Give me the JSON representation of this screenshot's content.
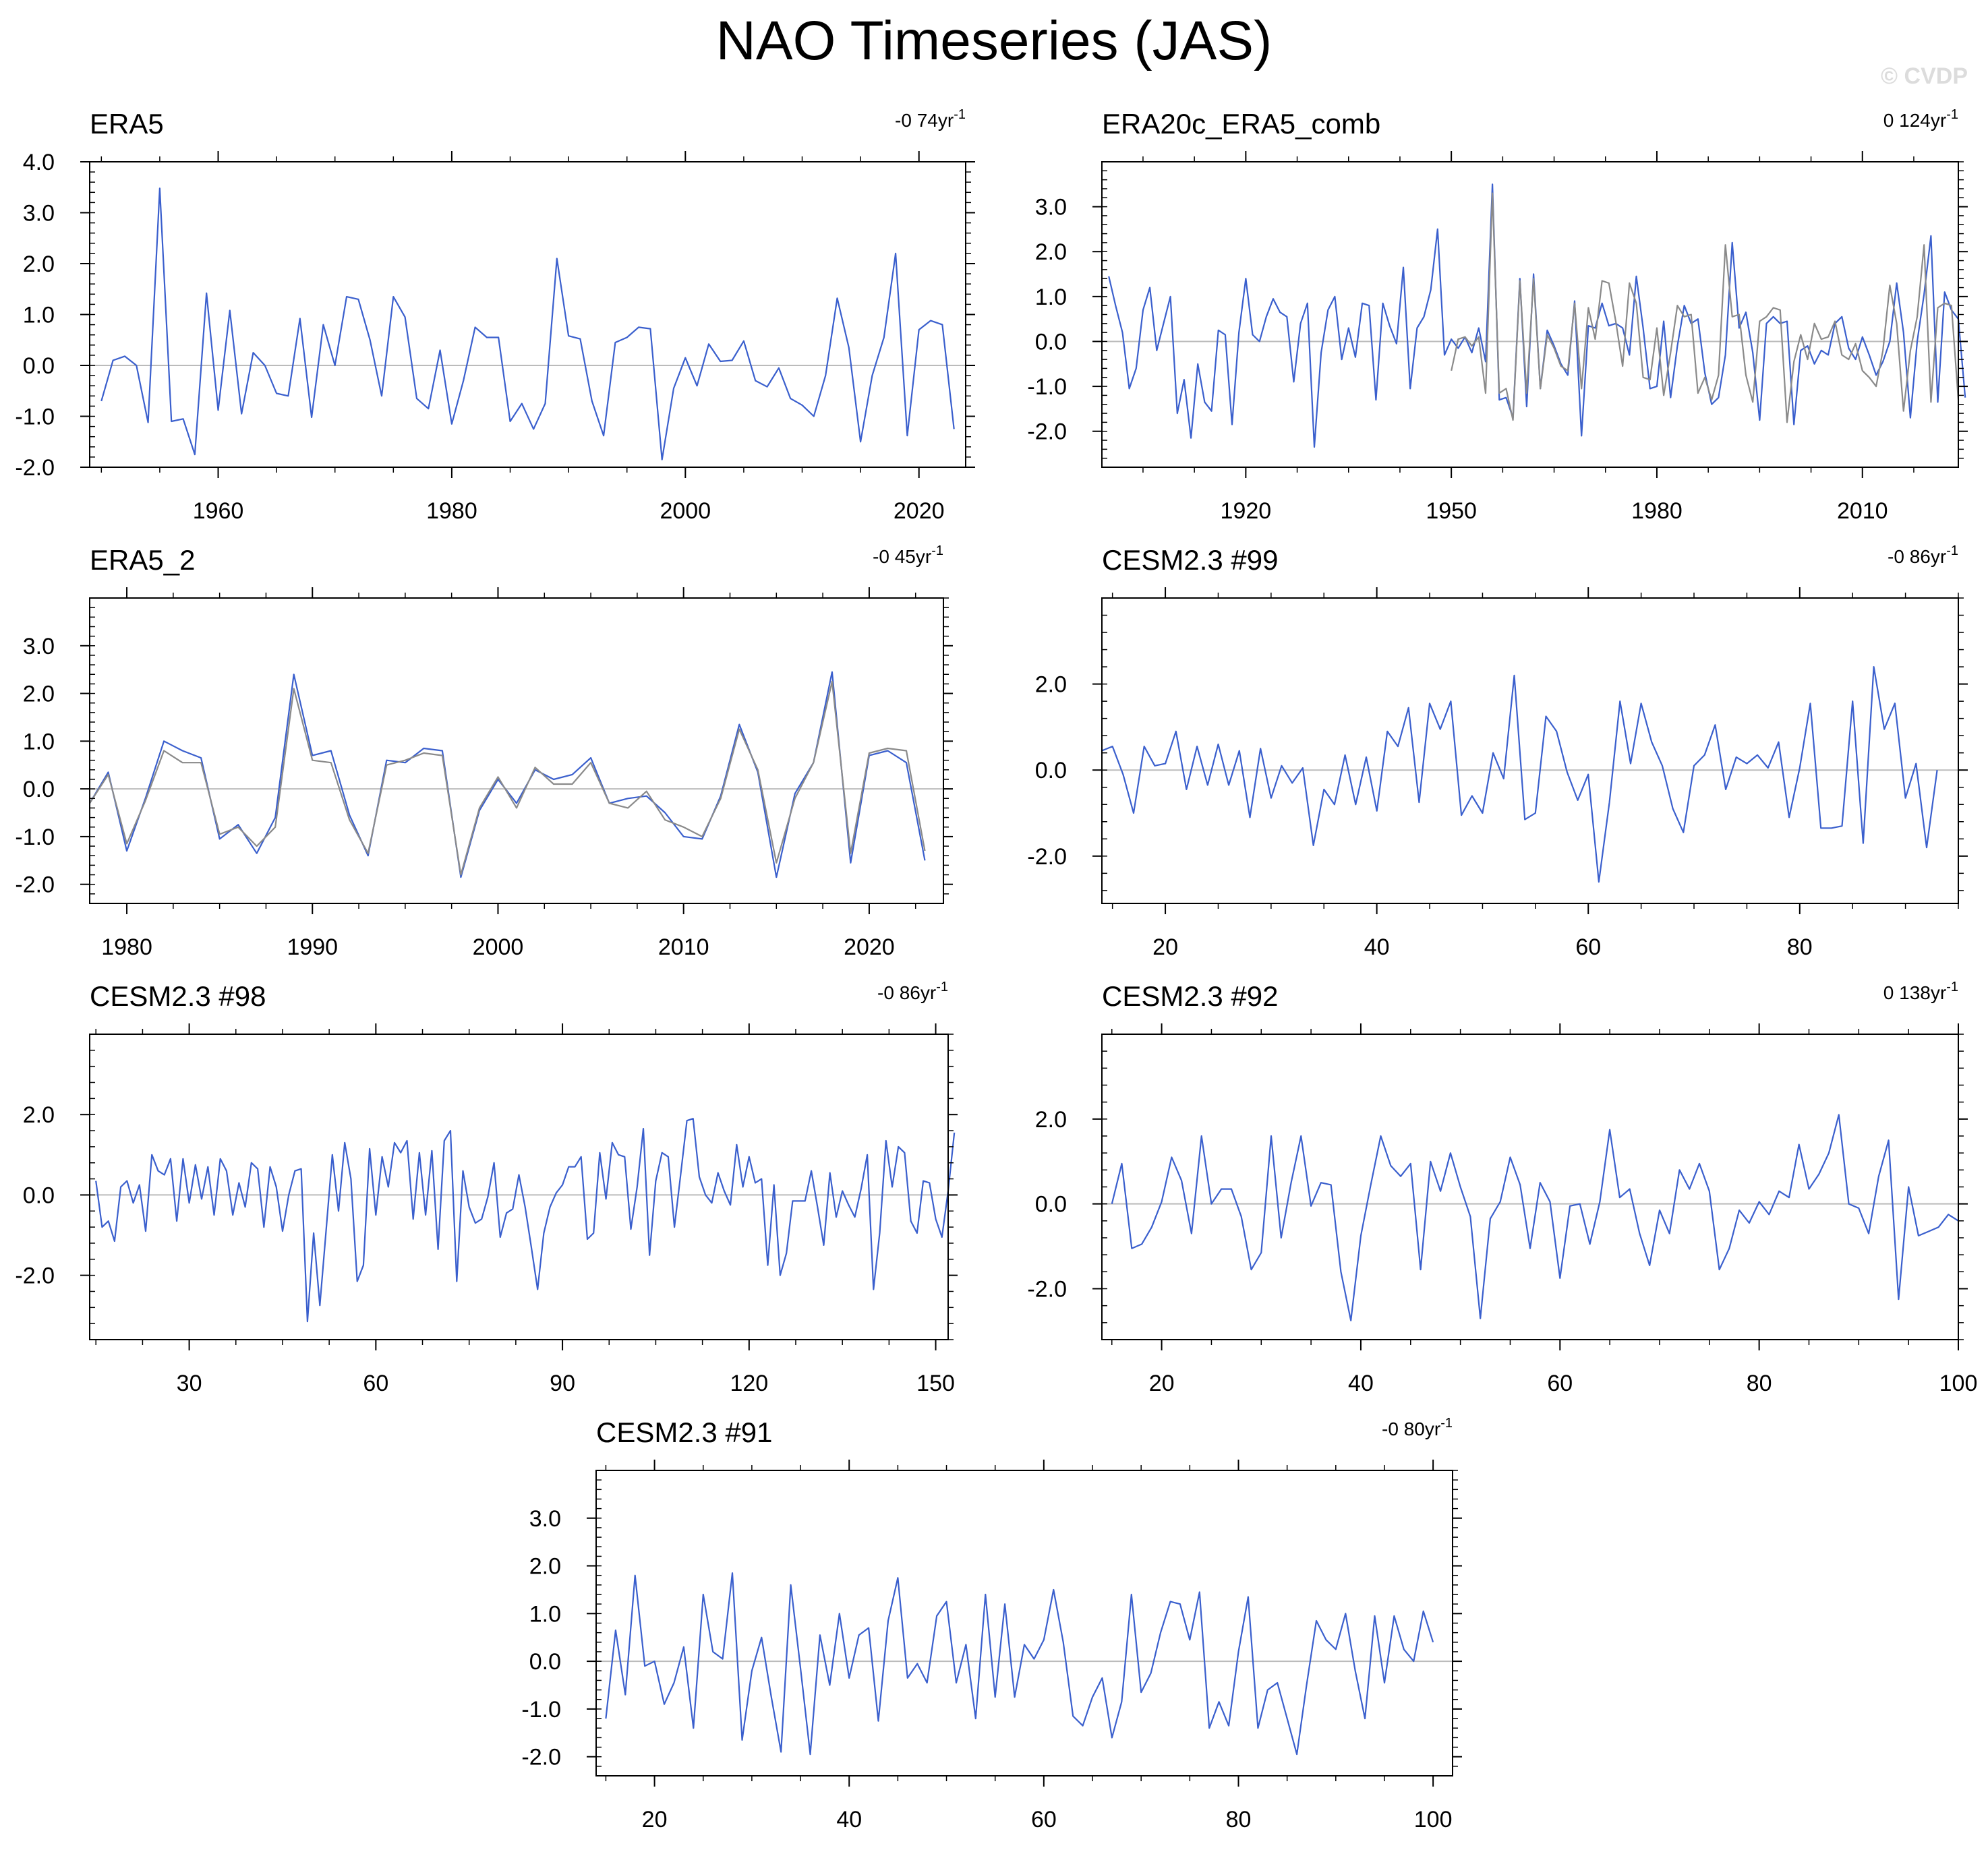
{
  "title": "NAO Timeseries (JAS)",
  "watermark": "© CVDP",
  "colors": {
    "primary": "#3a5fcd",
    "secondary": "#8a8a8a",
    "zero_line": "#bbbbbb",
    "axis": "#000000"
  },
  "chart_data": [
    {
      "type": "line",
      "title": "ERA5",
      "trend": "-0 74yr",
      "trend_sup": "-1",
      "ylim": [
        -2.0,
        4.0
      ],
      "yticks": [
        -2.0,
        -1.0,
        0.0,
        1.0,
        2.0,
        3.0,
        4.0
      ],
      "ytick_labels": [
        "-2.0",
        "-1.0",
        "0.0",
        "1.0",
        "2.0",
        "3.0",
        "4.0"
      ],
      "xlim": [
        1949,
        2024
      ],
      "xticks": [
        1960,
        1980,
        2000,
        2020
      ],
      "xtick_labels": [
        "1960",
        "1980",
        "2000",
        "2020"
      ],
      "x_start": 1950,
      "series": [
        {
          "name": "ERA5",
          "color": "primary",
          "values": [
            -0.7,
            0.1,
            0.18,
            0.0,
            -1.12,
            3.48,
            -1.1,
            -1.05,
            -1.75,
            1.42,
            -0.88,
            1.08,
            -0.95,
            0.25,
            0.0,
            -0.55,
            -0.6,
            0.92,
            -1.02,
            0.8,
            0.0,
            1.35,
            1.3,
            0.5,
            -0.6,
            1.35,
            0.95,
            -0.65,
            -0.85,
            0.3,
            -1.15,
            -0.3,
            0.75,
            0.55,
            0.55,
            -1.1,
            -0.75,
            -1.25,
            -0.75,
            2.1,
            0.58,
            0.52,
            -0.7,
            -1.38,
            0.45,
            0.55,
            0.75,
            0.72,
            -1.85,
            -0.45,
            0.15,
            -0.4,
            0.42,
            0.08,
            0.1,
            0.48,
            -0.3,
            -0.42,
            -0.05,
            -0.65,
            -0.78,
            -1.0,
            -0.2,
            1.32,
            0.35,
            -1.5,
            -0.2,
            0.55,
            2.2,
            -1.38,
            0.7,
            0.88,
            0.8,
            -1.25
          ]
        }
      ]
    },
    {
      "type": "line",
      "title": "ERA20c_ERA5_comb",
      "trend": "0 124yr",
      "trend_sup": "-1",
      "ylim": [
        -2.8,
        4.0
      ],
      "yticks": [
        -2.0,
        -1.0,
        0.0,
        1.0,
        2.0,
        3.0
      ],
      "ytick_labels": [
        "-2.0",
        "-1.0",
        "0.0",
        "1.0",
        "2.0",
        "3.0"
      ],
      "xlim": [
        1899,
        2024
      ],
      "xticks": [
        1920,
        1950,
        1980,
        2010
      ],
      "xtick_labels": [
        "1920",
        "1950",
        "1980",
        "2010"
      ],
      "x_start": 1900,
      "series": [
        {
          "name": "ERA20c_ERA5_comb",
          "color": "primary",
          "values": [
            1.45,
            0.8,
            0.2,
            -1.05,
            -0.6,
            0.7,
            1.2,
            -0.2,
            0.4,
            1.0,
            -1.6,
            -0.85,
            -2.15,
            -0.5,
            -1.35,
            -1.55,
            0.25,
            0.15,
            -1.85,
            0.2,
            1.4,
            0.15,
            0.0,
            0.55,
            0.95,
            0.65,
            0.55,
            -0.9,
            0.4,
            0.85,
            -2.35,
            -0.25,
            0.7,
            1.0,
            -0.4,
            0.3,
            -0.35,
            0.85,
            0.8,
            -1.3,
            0.85,
            0.35,
            -0.05,
            1.65,
            -1.05,
            0.3,
            0.55,
            1.15,
            2.5,
            -0.3,
            0.05,
            -0.15,
            0.1,
            -0.25,
            0.3,
            -0.45,
            3.5,
            -1.3,
            -1.25,
            -1.7,
            1.4,
            -1.45,
            1.5,
            -1.05,
            0.25,
            -0.1,
            -0.5,
            -0.75,
            0.9,
            -2.1,
            0.35,
            0.3,
            0.85,
            0.35,
            0.4,
            0.3,
            -0.3,
            1.45,
            0.3,
            -1.05,
            -1.0,
            0.45,
            -1.25,
            -0.1,
            0.8,
            0.4,
            0.5,
            -0.7,
            -1.4,
            -1.25,
            -0.3,
            2.2,
            0.3,
            0.65,
            -0.25,
            -1.75,
            0.4,
            0.55,
            0.4,
            0.45,
            -1.85,
            -0.2,
            -0.1,
            -0.5,
            -0.2,
            -0.3,
            0.4,
            0.55,
            -0.15,
            -0.4,
            0.1,
            -0.3,
            -0.75,
            -0.45,
            0.0,
            1.3,
            0.2,
            -1.7,
            0.0,
            1.05,
            2.35,
            -1.35,
            1.1,
            0.7,
            0.5,
            -1.25
          ]
        },
        {
          "name": "ERA20c_ERA5_comb_overlay",
          "color": "secondary",
          "x_start": 1950,
          "values": [
            -0.65,
            0.05,
            0.1,
            -0.1,
            0.1,
            -1.15,
            3.3,
            -1.15,
            -1.05,
            -1.75,
            1.35,
            -1.15,
            1.4,
            -1.05,
            0.15,
            -0.15,
            -0.55,
            -0.65,
            0.85,
            -1.05,
            0.75,
            0.05,
            1.35,
            1.3,
            0.45,
            -0.55,
            1.3,
            0.85,
            -0.8,
            -0.85,
            0.3,
            -1.2,
            -0.25,
            0.8,
            0.55,
            0.6,
            -1.15,
            -0.8,
            -1.3,
            -0.75,
            2.15,
            0.55,
            0.6,
            -0.75,
            -1.35,
            0.45,
            0.55,
            0.75,
            0.7,
            -1.8,
            -0.45,
            0.15,
            -0.4,
            0.4,
            0.05,
            0.1,
            0.45,
            -0.3,
            -0.4,
            -0.05,
            -0.65,
            -0.8,
            -1.0,
            -0.2,
            1.25,
            0.4,
            -1.55,
            -0.2,
            0.55,
            2.15,
            -1.35,
            0.75,
            0.85,
            0.8,
            -1.3
          ]
        }
      ]
    },
    {
      "type": "line",
      "title": "ERA5_2",
      "trend": "-0 45yr",
      "trend_sup": "-1",
      "ylim": [
        -2.4,
        4.0
      ],
      "yticks": [
        -2.0,
        -1.0,
        0.0,
        1.0,
        2.0,
        3.0
      ],
      "ytick_labels": [
        "-2.0",
        "-1.0",
        "0.0",
        "1.0",
        "2.0",
        "3.0"
      ],
      "xlim": [
        1978,
        2024
      ],
      "xticks": [
        1980,
        1990,
        2000,
        2010,
        2020
      ],
      "xtick_labels": [
        "1980",
        "1990",
        "2000",
        "2010",
        "2020"
      ],
      "x_start": 1978,
      "series": [
        {
          "name": "ERA5_2",
          "color": "primary",
          "values": [
            -0.3,
            0.35,
            -1.3,
            -0.2,
            1.0,
            0.8,
            0.65,
            -1.05,
            -0.75,
            -1.35,
            -0.6,
            2.4,
            0.7,
            0.8,
            -0.55,
            -1.4,
            0.6,
            0.55,
            0.85,
            0.8,
            -1.85,
            -0.45,
            0.2,
            -0.3,
            0.4,
            0.2,
            0.3,
            0.65,
            -0.3,
            -0.2,
            -0.15,
            -0.5,
            -1.0,
            -1.05,
            -0.15,
            1.35,
            0.35,
            -1.85,
            -0.1,
            0.55,
            2.45,
            -1.55,
            0.7,
            0.8,
            0.55,
            -1.5
          ]
        },
        {
          "name": "ERA5_2_reference",
          "color": "secondary",
          "values": [
            -0.3,
            0.3,
            -1.15,
            -0.25,
            0.8,
            0.55,
            0.55,
            -0.95,
            -0.8,
            -1.2,
            -0.8,
            2.1,
            0.6,
            0.55,
            -0.65,
            -1.35,
            0.5,
            0.6,
            0.75,
            0.7,
            -1.8,
            -0.4,
            0.25,
            -0.4,
            0.45,
            0.1,
            0.1,
            0.55,
            -0.3,
            -0.4,
            -0.05,
            -0.65,
            -0.8,
            -1.0,
            -0.2,
            1.25,
            0.4,
            -1.55,
            -0.2,
            0.55,
            2.25,
            -1.35,
            0.75,
            0.85,
            0.8,
            -1.3
          ]
        }
      ]
    },
    {
      "type": "line",
      "title": "CESM2.3 #99",
      "trend": "-0 86yr",
      "trend_sup": "-1",
      "ylim": [
        -3.1,
        4.0
      ],
      "yticks": [
        -2.0,
        0.0,
        2.0
      ],
      "ytick_labels": [
        "-2.0",
        "0.0",
        "2.0"
      ],
      "xlim": [
        14,
        95
      ],
      "xticks": [
        20,
        40,
        60,
        80
      ],
      "xtick_labels": [
        "20",
        "40",
        "60",
        "80"
      ],
      "x_start": 14,
      "series": [
        {
          "name": "CESM2.3 #99",
          "color": "primary",
          "values": [
            0.45,
            0.55,
            -0.1,
            -1.0,
            0.55,
            0.1,
            0.15,
            0.9,
            -0.45,
            0.55,
            -0.35,
            0.6,
            -0.35,
            0.45,
            -1.1,
            0.5,
            -0.65,
            0.1,
            -0.3,
            0.05,
            -1.75,
            -0.45,
            -0.8,
            0.35,
            -0.8,
            0.3,
            -0.95,
            0.9,
            0.55,
            1.45,
            -0.75,
            1.55,
            0.95,
            1.6,
            -1.05,
            -0.6,
            -1.0,
            0.4,
            -0.2,
            2.2,
            -1.15,
            -1.0,
            1.25,
            0.9,
            -0.05,
            -0.7,
            -0.1,
            -2.6,
            -0.75,
            1.6,
            0.15,
            1.55,
            0.65,
            0.1,
            -0.9,
            -1.45,
            0.1,
            0.35,
            1.05,
            -0.45,
            0.3,
            0.15,
            0.35,
            0.05,
            0.65,
            -1.1,
            0.05,
            1.55,
            -1.35,
            -1.35,
            -1.3,
            1.6,
            -1.7,
            2.4,
            0.95,
            1.55,
            -0.65,
            0.15,
            -1.8,
            0.0
          ]
        }
      ]
    },
    {
      "type": "line",
      "title": "CESM2.3 #98",
      "trend": "-0 86yr",
      "trend_sup": "-1",
      "ylim": [
        -3.6,
        4.0
      ],
      "yticks": [
        -2.0,
        0.0,
        2.0
      ],
      "ytick_labels": [
        "-2.0",
        "0.0",
        "2.0"
      ],
      "xlim": [
        14,
        152
      ],
      "xticks": [
        30,
        60,
        90,
        120,
        150
      ],
      "xtick_labels": [
        "30",
        "60",
        "90",
        "120",
        "150"
      ],
      "x_start": 15,
      "series": [
        {
          "name": "CESM2.3 #98",
          "color": "primary",
          "values": [
            0.35,
            -0.8,
            -0.65,
            -1.15,
            0.2,
            0.35,
            -0.2,
            0.25,
            -0.9,
            1.0,
            0.6,
            0.5,
            0.9,
            -0.65,
            0.9,
            -0.2,
            0.75,
            -0.1,
            0.7,
            -0.5,
            0.9,
            0.6,
            -0.5,
            0.3,
            -0.3,
            0.8,
            0.65,
            -0.8,
            0.7,
            0.2,
            -0.9,
            0.0,
            0.6,
            0.65,
            -3.15,
            -0.95,
            -2.75,
            -0.9,
            1.0,
            -0.4,
            1.3,
            0.4,
            -2.15,
            -1.75,
            1.15,
            -0.5,
            0.95,
            0.2,
            1.3,
            1.05,
            1.35,
            -0.6,
            1.05,
            -0.5,
            1.1,
            -1.35,
            1.35,
            1.6,
            -2.15,
            0.6,
            -0.3,
            -0.7,
            -0.6,
            -0.05,
            0.8,
            -1.05,
            -0.45,
            -0.35,
            0.5,
            -0.3,
            -1.3,
            -2.35,
            -0.95,
            -0.3,
            0.05,
            0.25,
            0.7,
            0.7,
            0.95,
            -1.1,
            -0.95,
            1.05,
            -0.1,
            1.3,
            1.0,
            0.95,
            -0.85,
            0.2,
            1.65,
            -1.5,
            0.35,
            1.05,
            0.95,
            -0.8,
            0.5,
            1.85,
            1.9,
            0.45,
            0.0,
            -0.2,
            0.55,
            0.1,
            -0.25,
            1.25,
            0.2,
            0.95,
            0.3,
            0.4,
            -1.75,
            0.25,
            -2.0,
            -1.45,
            -0.15,
            -0.15,
            -0.15,
            0.6,
            -0.3,
            -1.25,
            0.55,
            -0.55,
            0.1,
            -0.25,
            -0.55,
            0.15,
            1.0,
            -2.35,
            -0.95,
            1.35,
            0.2,
            1.2,
            1.05,
            -0.65,
            -0.95,
            0.35,
            0.3,
            -0.6,
            -1.05,
            0.1,
            1.55
          ]
        }
      ]
    },
    {
      "type": "line",
      "title": "CESM2.3 #92",
      "trend": "0 138yr",
      "trend_sup": "-1",
      "ylim": [
        -3.2,
        4.0
      ],
      "yticks": [
        -2.0,
        0.0,
        2.0
      ],
      "ytick_labels": [
        "-2.0",
        "0.0",
        "2.0"
      ],
      "xlim": [
        14,
        100
      ],
      "xticks": [
        20,
        40,
        60,
        80,
        100
      ],
      "xtick_labels": [
        "20",
        "40",
        "60",
        "80",
        "100"
      ],
      "x_start": 15,
      "series": [
        {
          "name": "CESM2.3 #92",
          "color": "primary",
          "values": [
            0.0,
            0.95,
            -1.05,
            -0.95,
            -0.55,
            0.05,
            1.1,
            0.55,
            -0.7,
            1.6,
            0.0,
            0.35,
            0.35,
            -0.3,
            -1.55,
            -1.15,
            1.6,
            -0.8,
            0.5,
            1.6,
            -0.05,
            0.5,
            0.45,
            -1.6,
            -2.75,
            -0.75,
            0.45,
            1.6,
            0.9,
            0.65,
            0.95,
            -1.55,
            1.0,
            0.3,
            1.2,
            0.4,
            -0.3,
            -2.7,
            -0.35,
            0.05,
            1.1,
            0.45,
            -1.05,
            0.5,
            0.05,
            -1.75,
            -0.05,
            0.0,
            -0.95,
            0.05,
            1.75,
            0.15,
            0.35,
            -0.7,
            -1.45,
            -0.15,
            -0.7,
            0.8,
            0.35,
            0.95,
            0.3,
            -1.55,
            -1.05,
            -0.15,
            -0.45,
            0.05,
            -0.25,
            0.3,
            0.15,
            1.4,
            0.35,
            0.7,
            1.2,
            2.1,
            0.0,
            -0.1,
            -0.7,
            0.65,
            1.5,
            -2.25,
            0.4,
            -0.75,
            -0.65,
            -0.55,
            -0.25,
            -0.4
          ]
        }
      ]
    },
    {
      "type": "line",
      "title": "CESM2.3 #91",
      "trend": "-0 80yr",
      "trend_sup": "-1",
      "ylim": [
        -2.4,
        4.0
      ],
      "yticks": [
        -2.0,
        -1.0,
        0.0,
        1.0,
        2.0,
        3.0
      ],
      "ytick_labels": [
        "-2.0",
        "-1.0",
        "0.0",
        "1.0",
        "2.0",
        "3.0"
      ],
      "xlim": [
        14,
        102
      ],
      "xticks": [
        20,
        40,
        60,
        80,
        100
      ],
      "xtick_labels": [
        "20",
        "40",
        "60",
        "80",
        "100"
      ],
      "x_start": 15,
      "series": [
        {
          "name": "CESM2.3 #91",
          "color": "primary",
          "values": [
            -1.2,
            0.65,
            -0.7,
            1.8,
            -0.1,
            0.0,
            -0.9,
            -0.45,
            0.3,
            -1.4,
            1.4,
            0.2,
            0.05,
            1.85,
            -1.65,
            -0.2,
            0.5,
            -0.75,
            -1.9,
            1.6,
            -0.15,
            -1.95,
            0.55,
            -0.5,
            1.0,
            -0.35,
            0.55,
            0.7,
            -1.25,
            0.85,
            1.75,
            -0.35,
            -0.05,
            -0.45,
            0.95,
            1.25,
            -0.45,
            0.35,
            -1.2,
            1.4,
            -0.75,
            1.2,
            -0.75,
            0.35,
            0.05,
            0.45,
            1.5,
            0.4,
            -1.15,
            -1.35,
            -0.75,
            -0.35,
            -1.6,
            -0.85,
            1.4,
            -0.65,
            -0.25,
            0.6,
            1.25,
            1.2,
            0.45,
            1.45,
            -1.4,
            -0.85,
            -1.35,
            0.2,
            1.35,
            -1.4,
            -0.6,
            -0.45,
            -1.2,
            -1.95,
            -0.5,
            0.85,
            0.45,
            0.25,
            1.0,
            -0.2,
            -1.2,
            0.95,
            -0.45,
            0.95,
            0.25,
            0.0,
            1.05,
            0.4
          ]
        }
      ]
    }
  ]
}
